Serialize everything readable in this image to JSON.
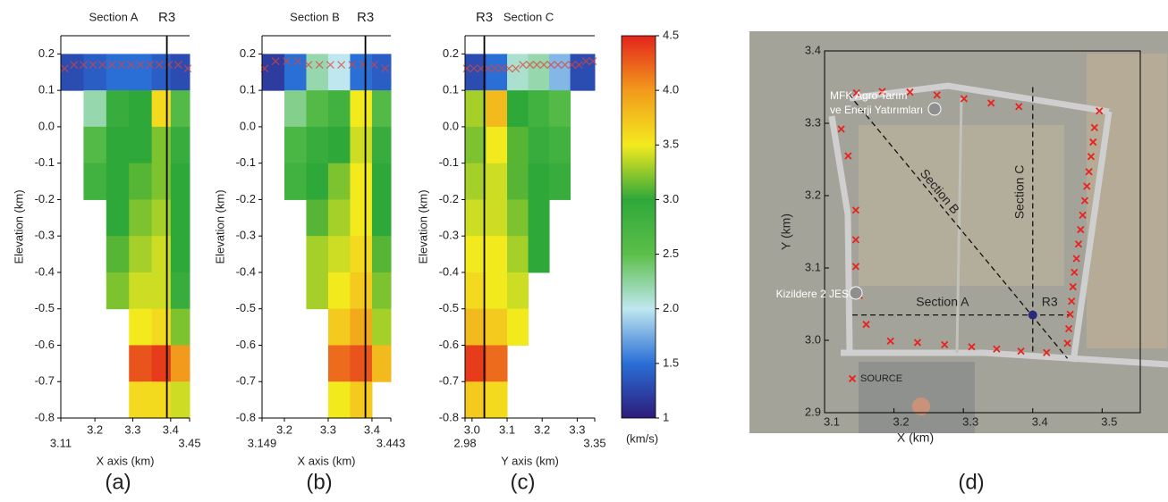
{
  "chart_data": [
    {
      "type": "section",
      "title": "Section A",
      "panel_label": "(a)",
      "xlabel": "X axis (km)",
      "ylabel": "Elevation (km)",
      "xlim": [
        3.11,
        3.45
      ],
      "ylim": [
        -0.8,
        0.25
      ],
      "xticks": [
        3.11,
        3.2,
        3.3,
        3.4,
        3.45
      ],
      "yticks": [
        -0.8,
        -0.7,
        -0.6,
        -0.5,
        -0.4,
        -0.3,
        -0.2,
        -0.1,
        {
          "value": 0,
          "label": "0.0"
        },
        0.1,
        0.2
      ],
      "xbins": [
        3.11,
        3.17,
        3.23,
        3.29,
        3.35,
        3.4,
        3.45
      ],
      "ybins": [
        0.2,
        0.1,
        0,
        -0.1,
        -0.2,
        -0.3,
        -0.4,
        -0.5,
        -0.6,
        -0.7,
        -0.8
      ],
      "z": [
        [
          1.3,
          1.4,
          1.5,
          1.5,
          1.4,
          1.3
        ],
        [
          null,
          2.2,
          2.9,
          3.0,
          3.6,
          2.6
        ],
        [
          null,
          2.6,
          3.0,
          3.0,
          3.2,
          2.9
        ],
        [
          null,
          2.8,
          3.0,
          3.1,
          3.2,
          3.0
        ],
        [
          null,
          null,
          3.0,
          3.2,
          3.3,
          3.0
        ],
        [
          null,
          null,
          3.1,
          3.3,
          3.4,
          3.0
        ],
        [
          null,
          null,
          3.2,
          3.4,
          3.4,
          2.9
        ],
        [
          null,
          null,
          null,
          3.5,
          3.6,
          3.2
        ],
        [
          null,
          null,
          null,
          4.3,
          4.4,
          4.0
        ],
        [
          null,
          null,
          null,
          3.6,
          3.6,
          3.4
        ]
      ],
      "receivers": {
        "x": [
          3.12,
          3.145,
          3.17,
          3.195,
          3.22,
          3.245,
          3.27,
          3.295,
          3.32,
          3.345,
          3.37,
          3.395,
          3.42,
          3.445
        ],
        "y": [
          0.16,
          0.17,
          0.17,
          0.17,
          0.17,
          0.17,
          0.17,
          0.17,
          0.17,
          0.17,
          0.17,
          0.17,
          0.17,
          0.16
        ]
      },
      "r3": {
        "label": "R3",
        "x": 3.39
      }
    },
    {
      "type": "section",
      "title": "Section B",
      "panel_label": "(b)",
      "xlabel": "X axis (km)",
      "ylabel": "Elevation (km)",
      "xlim": [
        3.149,
        3.443
      ],
      "ylim": [
        -0.8,
        0.25
      ],
      "xticks": [
        3.149,
        3.2,
        3.3,
        3.4,
        3.443
      ],
      "yticks": [
        -0.8,
        -0.7,
        -0.6,
        -0.5,
        -0.4,
        -0.3,
        -0.2,
        -0.1,
        {
          "value": 0,
          "label": "0.0"
        },
        0.1,
        0.2
      ],
      "xbins": [
        3.149,
        3.2,
        3.25,
        3.3,
        3.35,
        3.4,
        3.443
      ],
      "ybins": [
        0.2,
        0.1,
        0,
        -0.1,
        -0.2,
        -0.3,
        -0.4,
        -0.5,
        -0.6,
        -0.7,
        -0.8
      ],
      "z": [
        [
          1.2,
          1.5,
          2.2,
          2.0,
          1.5,
          1.4
        ],
        [
          null,
          2.3,
          2.6,
          2.8,
          3.5,
          2.6
        ],
        [
          null,
          2.7,
          2.9,
          3.0,
          3.4,
          2.9
        ],
        [
          null,
          2.8,
          3.0,
          3.2,
          3.5,
          3.0
        ],
        [
          null,
          null,
          3.1,
          3.3,
          3.5,
          3.0
        ],
        [
          null,
          null,
          3.3,
          3.4,
          3.6,
          3.1
        ],
        [
          null,
          null,
          3.3,
          3.5,
          3.7,
          3.2
        ],
        [
          null,
          null,
          null,
          3.7,
          3.9,
          3.3
        ],
        [
          null,
          null,
          null,
          4.2,
          4.3,
          3.8
        ],
        [
          null,
          null,
          null,
          3.5,
          3.7,
          null
        ]
      ],
      "receivers": {
        "x": [
          3.155,
          3.18,
          3.205,
          3.23,
          3.255,
          3.28,
          3.305,
          3.33,
          3.355,
          3.38,
          3.405,
          3.43
        ],
        "y": [
          0.16,
          0.18,
          0.18,
          0.18,
          0.17,
          0.17,
          0.17,
          0.17,
          0.17,
          0.17,
          0.17,
          0.16
        ]
      },
      "r3": {
        "label": "R3",
        "x": 3.385
      }
    },
    {
      "type": "section",
      "title": "Section C",
      "panel_label": "(c)",
      "xlabel": "Y axis (km)",
      "ylabel": "Elevation (km)",
      "xlim": [
        2.98,
        3.35
      ],
      "ylim": [
        -0.8,
        0.25
      ],
      "xticks": [
        2.98,
        {
          "value": 3,
          "label": "3.0"
        },
        3.1,
        3.2,
        3.3,
        3.35
      ],
      "yticks": [
        -0.8,
        -0.7,
        -0.6,
        -0.5,
        -0.4,
        -0.3,
        -0.2,
        -0.1,
        {
          "value": 0,
          "label": "0.0"
        },
        0.1,
        0.2
      ],
      "xbins": [
        2.98,
        3.04,
        3.1,
        3.16,
        3.22,
        3.28,
        3.35
      ],
      "ybins": [
        0.2,
        0.1,
        0,
        -0.1,
        -0.2,
        -0.3,
        -0.4,
        -0.5,
        -0.6,
        -0.7,
        -0.8
      ],
      "z": [
        [
          1.3,
          1.5,
          2.1,
          2.2,
          1.8,
          1.3
        ],
        [
          3.3,
          3.8,
          3.0,
          2.8,
          2.6,
          null
        ],
        [
          3.2,
          3.5,
          3.1,
          2.9,
          2.8,
          null
        ],
        [
          3.3,
          3.4,
          3.1,
          3.0,
          2.9,
          null
        ],
        [
          3.4,
          3.4,
          3.2,
          3.0,
          null,
          null
        ],
        [
          3.5,
          3.5,
          3.3,
          3.0,
          null,
          null
        ],
        [
          3.6,
          3.5,
          3.4,
          null,
          null,
          null
        ],
        [
          3.8,
          3.7,
          3.5,
          null,
          null,
          null
        ],
        [
          4.4,
          4.2,
          null,
          null,
          null,
          null
        ],
        [
          3.7,
          3.6,
          null,
          null,
          null,
          null
        ]
      ],
      "receivers": {
        "x": [
          2.985,
          3.005,
          3.025,
          3.045,
          3.065,
          3.085,
          3.105,
          3.125,
          3.145,
          3.165,
          3.185,
          3.205,
          3.225,
          3.245,
          3.265,
          3.285,
          3.305,
          3.325,
          3.345
        ],
        "y": [
          0.16,
          0.16,
          0.16,
          0.16,
          0.16,
          0.16,
          0.16,
          0.16,
          0.17,
          0.17,
          0.17,
          0.17,
          0.17,
          0.17,
          0.17,
          0.17,
          0.17,
          0.18,
          0.18
        ]
      },
      "r3": {
        "label": "R3",
        "x": 3.035
      }
    },
    {
      "type": "colorbar",
      "label": "(km/s)",
      "clim": [
        1,
        4.5
      ],
      "ticks": [
        1,
        1.5,
        {
          "value": 2,
          "label": "2.0"
        },
        2.5,
        {
          "value": 3,
          "label": "3.0"
        },
        3.5,
        {
          "value": 4,
          "label": "4.0"
        },
        4.5
      ],
      "colors": [
        "#2d1b7a",
        "#2a6fd6",
        "#bfe7ef",
        "#5cbf4a",
        "#2fa83a",
        "#f3ea1e",
        "#f29a1c",
        "#e3241c"
      ]
    },
    {
      "type": "map",
      "panel_label": "(d)",
      "xlabel": "X (km)",
      "ylabel": "Y (km)",
      "xlim": [
        3.1,
        3.555
      ],
      "ylim": [
        2.9,
        3.4
      ],
      "xticks": [
        3.1,
        3.2,
        3.3,
        3.4,
        3.5
      ],
      "yticks": [
        2.9,
        {
          "value": 3,
          "label": "3.0"
        },
        3.1,
        3.2,
        3.3,
        3.4
      ],
      "receivers": {
        "color": "#e8231f",
        "x": [
          3.146,
          3.183,
          3.223,
          3.262,
          3.301,
          3.34,
          3.38,
          3.496,
          3.489,
          3.487,
          3.484,
          3.481,
          3.478,
          3.475,
          3.472,
          3.469,
          3.466,
          3.463,
          3.46,
          3.458,
          3.456,
          3.454,
          3.452,
          3.45,
          3.42,
          3.383,
          3.348,
          3.312,
          3.273,
          3.234,
          3.195,
          3.16,
          3.15,
          3.145,
          3.145,
          3.145,
          3.134,
          3.124
        ],
        "y": [
          3.342,
          3.344,
          3.343,
          3.339,
          3.334,
          3.328,
          3.323,
          3.317,
          3.294,
          3.274,
          3.254,
          3.233,
          3.213,
          3.193,
          3.173,
          3.153,
          3.133,
          3.113,
          3.094,
          3.074,
          3.054,
          3.036,
          3.016,
          2.996,
          2.983,
          2.985,
          2.988,
          2.991,
          2.994,
          2.997,
          2.999,
          3.022,
          3.062,
          3.102,
          3.139,
          3.18,
          3.255,
          3.292
        ]
      },
      "sections": [
        {
          "name": "Section A",
          "x": [
            3.14,
            3.455
          ],
          "y": [
            3.035,
            3.035
          ]
        },
        {
          "name": "Section B",
          "x": [
            3.135,
            3.45
          ],
          "y": [
            3.34,
            2.975
          ]
        },
        {
          "name": "Section C",
          "x": [
            3.4,
            3.4
          ],
          "y": [
            3.35,
            2.98
          ]
        }
      ],
      "r3": {
        "label": "R3",
        "x": 3.4,
        "y": 3.035
      },
      "source": {
        "label": "SOURCE",
        "x": 3.14,
        "y": 2.947
      },
      "places": [
        "MFK Agro Tarım",
        "ve Enerji Yatırımları",
        "Kizildere 2 JES"
      ]
    }
  ]
}
